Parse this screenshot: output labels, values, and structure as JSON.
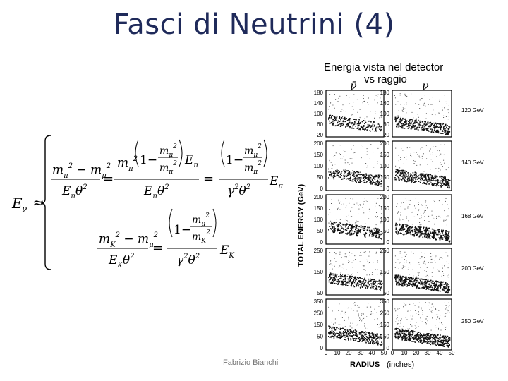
{
  "slide": {
    "title": "Fasci di Neutrini (4)",
    "footer": "Fabrizio Bianchi"
  },
  "figure": {
    "header_line1": "Energia vista nel detector",
    "header_line2": "vs raggio",
    "col_left_symbol": "ν̄",
    "col_right_symbol": "ν",
    "y_axis_label": "TOTAL  ENERGY  (GeV)",
    "x_axis_label": "RADIUS",
    "x_axis_unit": "(inches)",
    "x_ticks": [
      "0",
      "10",
      "20",
      "30",
      "40",
      "50",
      "0",
      "10",
      "20",
      "30",
      "40",
      "50"
    ],
    "panels": [
      {
        "energy_label": "120 GeV",
        "y_ticks": [
          "180",
          "140",
          "100",
          "60",
          "20"
        ]
      },
      {
        "energy_label": "140 GeV",
        "y_ticks": [
          "200",
          "150",
          "100",
          "50",
          "0"
        ]
      },
      {
        "energy_label": "168 GeV",
        "y_ticks": [
          "200",
          "150",
          "100",
          "50",
          "0"
        ]
      },
      {
        "energy_label": "200 GeV",
        "y_ticks": [
          "250",
          "150",
          "50"
        ]
      },
      {
        "energy_label": "250 GeV",
        "y_ticks": [
          "350",
          "250",
          "150",
          "50",
          "0"
        ]
      }
    ]
  },
  "formula": {
    "lhs": "E",
    "lhs_sub": "ν",
    "approx": "≈"
  }
}
